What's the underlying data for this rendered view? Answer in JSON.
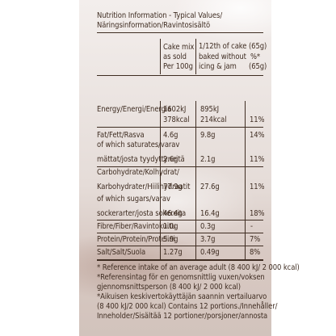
{
  "title": {
    "line1": "Nutrition Information - Typical Values/",
    "line2": "Näringsinformation/Ravintosisältö"
  },
  "columns": {
    "col1": [
      "Cake mix",
      "as sold",
      "Per 100g"
    ],
    "col2": [
      "1/12th of cake (65g)",
      "baked without",
      "icing & jam"
    ],
    "col3": [
      "%*",
      "(65g)"
    ]
  },
  "rows": [
    {
      "label": [
        "Energy/Energi/Energia",
        ""
      ],
      "v1": [
        "1602kJ",
        "378kcal"
      ],
      "v2": [
        "895kJ",
        "214kcal"
      ],
      "pct": [
        "",
        "11%"
      ]
    },
    {
      "label": [
        "Fat/Fett/Rasva"
      ],
      "v1": [
        "4.6g"
      ],
      "v2": [
        "9.8g"
      ],
      "pct": [
        "14%"
      ]
    },
    {
      "label": [
        "of which saturates/varav",
        "mättat/josta tyydyttyneitä"
      ],
      "v1": [
        "",
        "2.6g"
      ],
      "v2": [
        "",
        "2.1g"
      ],
      "pct": [
        "",
        "11%"
      ]
    },
    {
      "label": [
        "Carbohydrate/Kolhydrat/",
        "Karbohydrater/Hiilihydraatit"
      ],
      "v1": [
        "",
        "77.9g"
      ],
      "v2": [
        "",
        "27.6g"
      ],
      "pct": [
        "",
        "11%"
      ]
    },
    {
      "label": [
        "of which sugars/varav",
        "sockerarter/josta sokereita"
      ],
      "v1": [
        "",
        "46.4g"
      ],
      "v2": [
        "",
        "16.4g"
      ],
      "pct": [
        "",
        "18%"
      ]
    },
    {
      "label": [
        "Fibre/Fiber/Ravintokuitu"
      ],
      "v1": [
        "1.0g"
      ],
      "v2": [
        "0.3g"
      ],
      "pct": [
        "-"
      ]
    },
    {
      "label": [
        "Protein/Protein/Proteiini"
      ],
      "v1": [
        "5.9g"
      ],
      "v2": [
        "3.7g"
      ],
      "pct": [
        "7%"
      ]
    },
    {
      "label": [
        "Salt/Salt/Suola"
      ],
      "v1": [
        "1.27g"
      ],
      "v2": [
        "0.49g"
      ],
      "pct": [
        "8%"
      ]
    }
  ],
  "footnotes": [
    "* Reference intake of an average adult (8 400 kJ/ 2 000 kcal)",
    "*Referensintag för en genomsnittlig vuxen/voksen",
    "gjennomsnittsperson (8 400 kJ/ 2 000 kcal)",
    "*Aikuisen keskivertokäyttäjän saannin vertailuarvo",
    "(8 400 kJ/2 000 kcal) Contains 12 portions./Innehåller/",
    "Inneholder/Sisältää 12 portioner/porsjoner/annosta"
  ]
}
